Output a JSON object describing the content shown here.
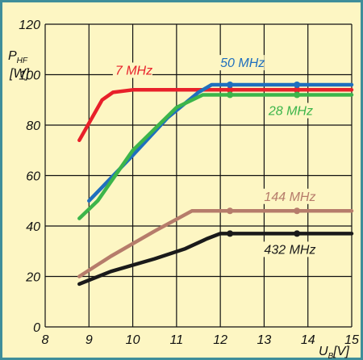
{
  "chart_data": {
    "type": "line",
    "title": "",
    "xlabel": "U",
    "xlabel_subscript": "B",
    "xlabel_unit": "[V]",
    "ylabel": "P",
    "ylabel_subscript": "HF",
    "ylabel_unit": "[W]",
    "xlim": [
      8,
      15
    ],
    "ylim": [
      0,
      120
    ],
    "xticks": [
      "8",
      "9",
      "10",
      "11",
      "12",
      "13",
      "14",
      "15"
    ],
    "yticks": [
      "0",
      "20",
      "40",
      "60",
      "80",
      "100",
      "120"
    ],
    "grid": true,
    "background": "#fdf6c3",
    "border_color": "#3e8e9a",
    "series": [
      {
        "name": "7 MHz",
        "color": "#e8202a",
        "points": [
          [
            8.78,
            74
          ],
          [
            9.3,
            90
          ],
          [
            9.55,
            93
          ],
          [
            10.0,
            94
          ],
          [
            12.0,
            94
          ],
          [
            13.8,
            94
          ],
          [
            15.0,
            94
          ]
        ],
        "markers": [
          [
            12.22,
            94
          ],
          [
            13.75,
            94
          ]
        ]
      },
      {
        "name": "50 MHz",
        "color": "#1f6fbe",
        "points": [
          [
            9.0,
            50
          ],
          [
            10.0,
            68
          ],
          [
            10.8,
            83
          ],
          [
            11.5,
            93
          ],
          [
            11.8,
            96
          ],
          [
            15.0,
            96
          ]
        ],
        "markers": [
          [
            12.22,
            96
          ],
          [
            13.75,
            96
          ]
        ]
      },
      {
        "name": "28 MHz",
        "color": "#3cb54a",
        "points": [
          [
            8.78,
            43
          ],
          [
            9.2,
            50
          ],
          [
            10.0,
            70
          ],
          [
            11.0,
            87
          ],
          [
            11.6,
            92
          ],
          [
            15.0,
            92
          ]
        ],
        "markers": [
          [
            12.22,
            92
          ],
          [
            13.75,
            92
          ]
        ]
      },
      {
        "name": "144 MHz",
        "color": "#b67c6b",
        "points": [
          [
            8.78,
            20
          ],
          [
            9.5,
            28
          ],
          [
            10.5,
            38
          ],
          [
            11.35,
            46
          ],
          [
            15.0,
            46
          ]
        ],
        "markers": [
          [
            12.22,
            46
          ],
          [
            13.75,
            46
          ]
        ]
      },
      {
        "name": "432 MHz",
        "color": "#1a1a1a",
        "points": [
          [
            8.78,
            17
          ],
          [
            9.5,
            22
          ],
          [
            10.5,
            27
          ],
          [
            11.2,
            31
          ],
          [
            11.7,
            35
          ],
          [
            12.0,
            37
          ],
          [
            15.0,
            37
          ]
        ],
        "markers": [
          [
            12.22,
            37
          ],
          [
            13.75,
            37
          ]
        ]
      }
    ],
    "labels": [
      {
        "text": "7 MHz",
        "color": "#e8202a",
        "x": 9.6,
        "y": 100
      },
      {
        "text": "50 MHz",
        "color": "#1f6fbe",
        "x": 12.0,
        "y": 103
      },
      {
        "text": "28 MHz",
        "color": "#3cb54a",
        "x": 13.1,
        "y": 84
      },
      {
        "text": "144 MHz",
        "color": "#b67c6b",
        "x": 13.0,
        "y": 50
      },
      {
        "text": "432 MHz",
        "color": "#1a1a1a",
        "x": 13.0,
        "y": 29
      }
    ]
  }
}
